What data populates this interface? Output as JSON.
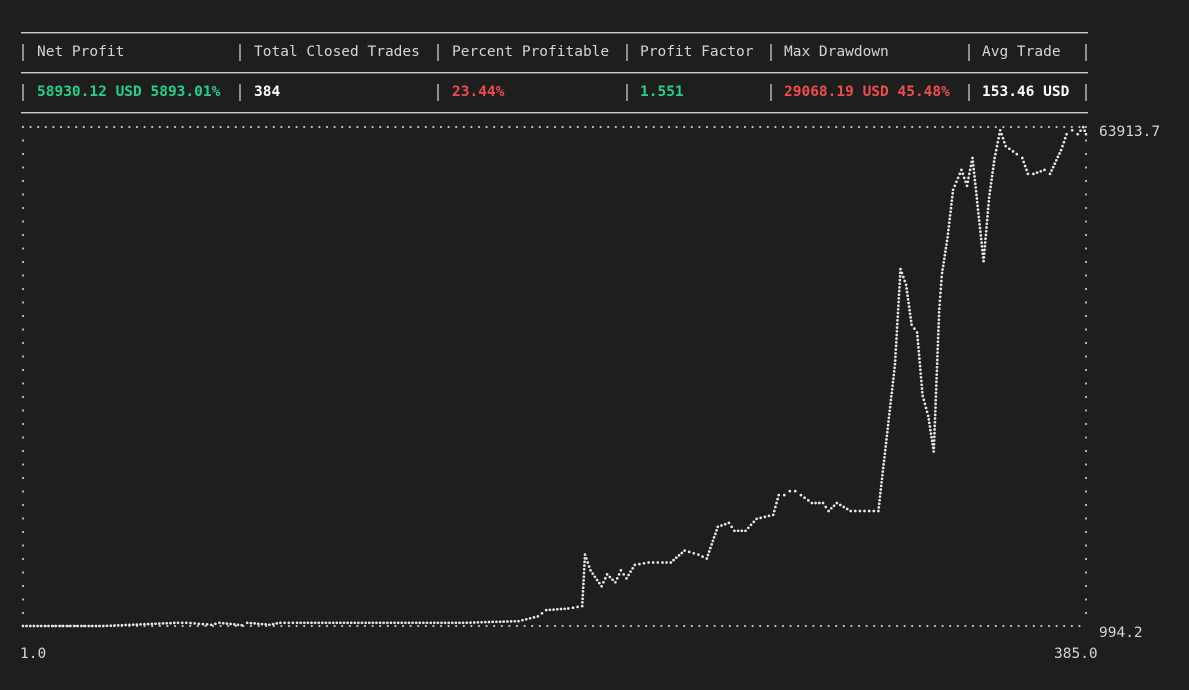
{
  "stats": {
    "headers": [
      "Net Profit",
      "Total Closed Trades",
      "Percent Profitable",
      "Profit Factor",
      "Max Drawdown",
      "Avg Trade"
    ],
    "values": [
      "58930.12 USD 5893.01%",
      "384",
      "23.44%",
      "1.551",
      "29068.19 USD 45.48%",
      "153.46 USD"
    ],
    "value_colors": [
      "#23d18b",
      "#ffffff",
      "#f14c4c",
      "#23d18b",
      "#f14c4c",
      "#ffffff"
    ]
  },
  "chart_data": {
    "type": "line",
    "y_max_label": "63913.7",
    "y_min_label": "994.2",
    "x_min_label": "1.0",
    "x_max_label": "385.0",
    "xlim": [
      1.0,
      385.0
    ],
    "ylim": [
      994.2,
      63913.7
    ],
    "series": [
      {
        "x": [
          1,
          30,
          57,
          60,
          69,
          72,
          80,
          82,
          90,
          94,
          100,
          130,
          160,
          180,
          187,
          190,
          198,
          203,
          204,
          206,
          210,
          212,
          215,
          217,
          219,
          222,
          227,
          232,
          235,
          240,
          245,
          248,
          252,
          256,
          258,
          262,
          266,
          272,
          274,
          276,
          278,
          280,
          282,
          286,
          290,
          292,
          295,
          300,
          305,
          310,
          316,
          318,
          320,
          322,
          324,
          326,
          328,
          330,
          332,
          333,
          335,
          337,
          340,
          342,
          344,
          348,
          350,
          352,
          354,
          356,
          360,
          362,
          364,
          366,
          370,
          372,
          376,
          378,
          380,
          382,
          384,
          385
        ],
        "y": [
          994.2,
          994.2,
          1400,
          1400,
          1150,
          1400,
          1100,
          1400,
          1150,
          1400,
          1400,
          1400,
          1400,
          1600,
          2200,
          3000,
          3200,
          3500,
          10000,
          8000,
          6000,
          7500,
          6500,
          8000,
          7000,
          8700,
          9000,
          9000,
          9000,
          10500,
          10000,
          9500,
          13500,
          14000,
          13000,
          13000,
          14500,
          15000,
          17500,
          17500,
          18000,
          18000,
          17500,
          16500,
          16500,
          15500,
          16500,
          15500,
          15500,
          15500,
          34000,
          46000,
          44000,
          39000,
          38000,
          30000,
          27500,
          23000,
          41000,
          45500,
          50000,
          56000,
          58500,
          56500,
          60000,
          47000,
          55000,
          60000,
          63500,
          61500,
          60500,
          60000,
          58000,
          58000,
          58500,
          58000,
          61000,
          63000,
          63500,
          63000,
          63900,
          63000
        ]
      }
    ]
  }
}
